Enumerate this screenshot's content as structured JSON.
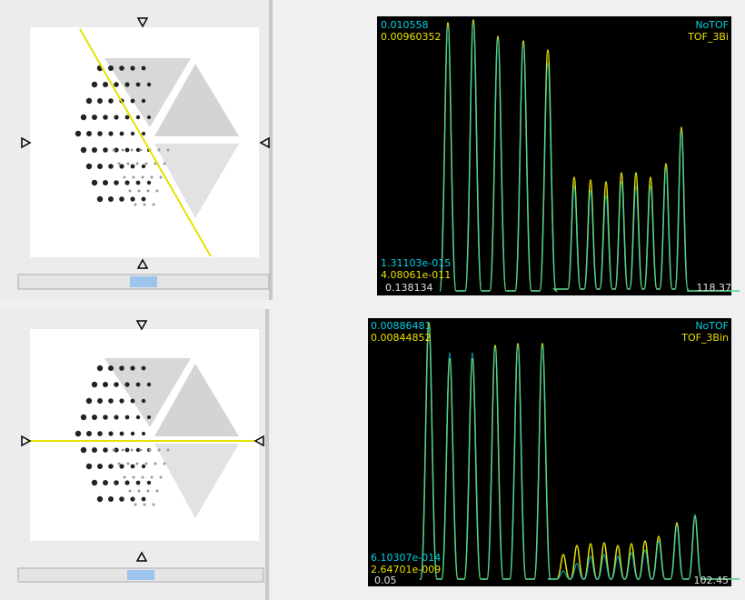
{
  "panels": [
    {
      "max_a": "0.010558",
      "max_b": "0.00960352",
      "legend_a": "NoTOF",
      "legend_b": "TOF_3Bi",
      "min_a": "1.31103e-015",
      "min_b": "4.08061e-011",
      "x_start": "0.138134",
      "x_end": "118.37"
    },
    {
      "max_a": "0.00886481",
      "max_b": "0.00844852",
      "legend_a": "NoTOF",
      "legend_b": "TOF_3Bin",
      "min_a": "6.10307e-014",
      "min_b": "2.64701e-009",
      "x_start": "0.05",
      "x_end": "102.45"
    }
  ]
}
